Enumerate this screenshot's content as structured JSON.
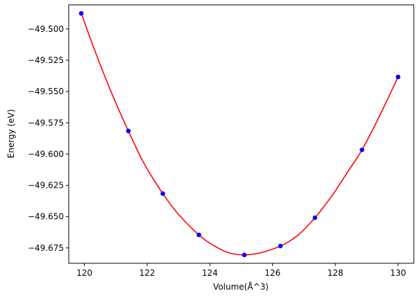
{
  "chart_data": {
    "type": "scatter",
    "xlabel": "Volume(Å^3)",
    "ylabel": "Energy (eV)",
    "xlim": [
      119.5,
      130.5
    ],
    "ylim": [
      -49.6873,
      -49.4807
    ],
    "xticks": [
      120,
      122,
      124,
      126,
      128,
      130
    ],
    "yticks": [
      -49.675,
      -49.65,
      -49.625,
      -49.6,
      -49.575,
      -49.55,
      -49.525,
      -49.5
    ],
    "xtick_labels": [
      "120",
      "122",
      "124",
      "126",
      "128",
      "130"
    ],
    "ytick_labels": [
      "−49.675",
      "−49.650",
      "−49.625",
      "−49.600",
      "−49.575",
      "−49.550",
      "−49.525",
      "−49.500"
    ],
    "grid": false,
    "series": [
      {
        "kind": "points",
        "color": "#0000ff",
        "x": [
          119.9,
          121.4,
          122.5,
          123.65,
          125.1,
          126.25,
          127.35,
          128.85,
          130.0
        ],
        "y": [
          -49.4875,
          -49.5815,
          -49.6316,
          -49.6646,
          -49.6806,
          -49.6735,
          -49.6509,
          -49.5966,
          -49.5383
        ]
      },
      {
        "kind": "fit-line",
        "color": "#ff0000",
        "x": [
          119.9,
          120.25,
          120.6,
          120.95,
          121.4,
          121.9,
          122.5,
          123.0,
          123.65,
          124.1,
          124.6,
          125.1,
          125.6,
          126.25,
          126.8,
          127.35,
          127.9,
          128.4,
          128.85,
          129.4,
          130.0
        ],
        "y": [
          -49.4875,
          -49.5118,
          -49.5347,
          -49.5561,
          -49.5815,
          -49.6074,
          -49.6316,
          -49.6482,
          -49.6646,
          -49.6727,
          -49.6789,
          -49.6806,
          -49.679,
          -49.6735,
          -49.665,
          -49.6509,
          -49.633,
          -49.614,
          -49.5966,
          -49.57,
          -49.5383
        ]
      }
    ]
  }
}
